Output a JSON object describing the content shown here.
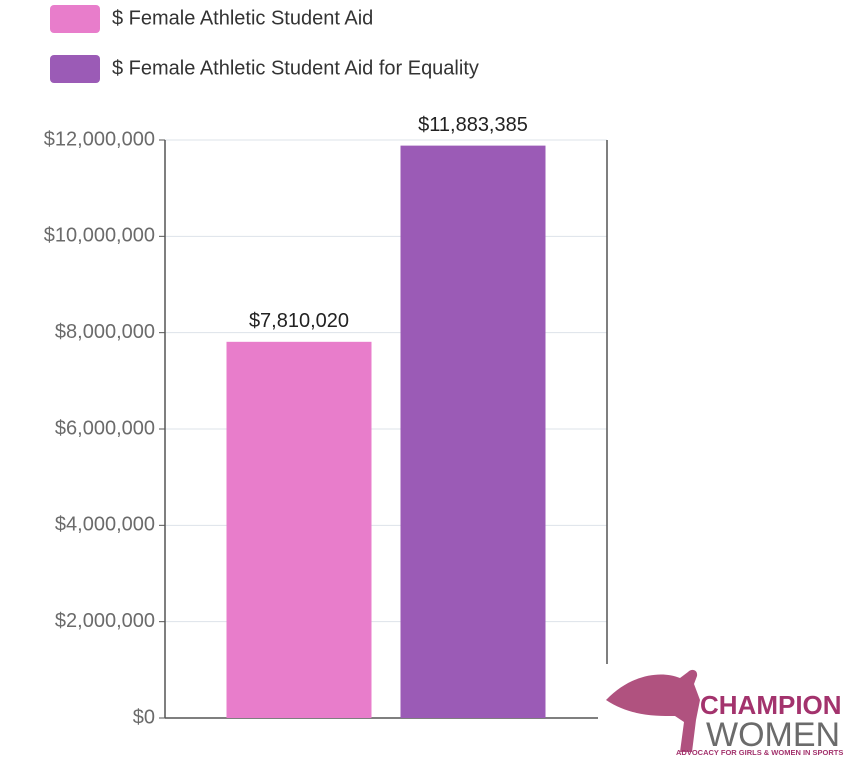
{
  "chart_data": {
    "type": "bar",
    "categories": [
      null
    ],
    "series": [
      {
        "name": "$ Female Athletic Student Aid",
        "color": "#e87dcb",
        "values": [
          7810020
        ],
        "value_labels": [
          "$7,810,020"
        ]
      },
      {
        "name": "$ Female Athletic Student Aid for Equality",
        "color": "#9b5bb6",
        "values": [
          11883385
        ],
        "value_labels": [
          "$11,883,385"
        ]
      }
    ],
    "ylim": [
      0,
      12000000
    ],
    "yticks": [
      {
        "value": 0,
        "label": "$0"
      },
      {
        "value": 2000000,
        "label": "$2,000,000"
      },
      {
        "value": 4000000,
        "label": "$4,000,000"
      },
      {
        "value": 6000000,
        "label": "$6,000,000"
      },
      {
        "value": 8000000,
        "label": "$8,000,000"
      },
      {
        "value": 10000000,
        "label": "$10,000,000"
      },
      {
        "value": 12000000,
        "label": "$12,000,000"
      }
    ],
    "grid": true
  },
  "logo": {
    "name_top": "CHAMPION",
    "name_bottom": "WOMEN",
    "tagline": "ADVOCACY FOR GIRLS & WOMEN IN SPORTS"
  }
}
